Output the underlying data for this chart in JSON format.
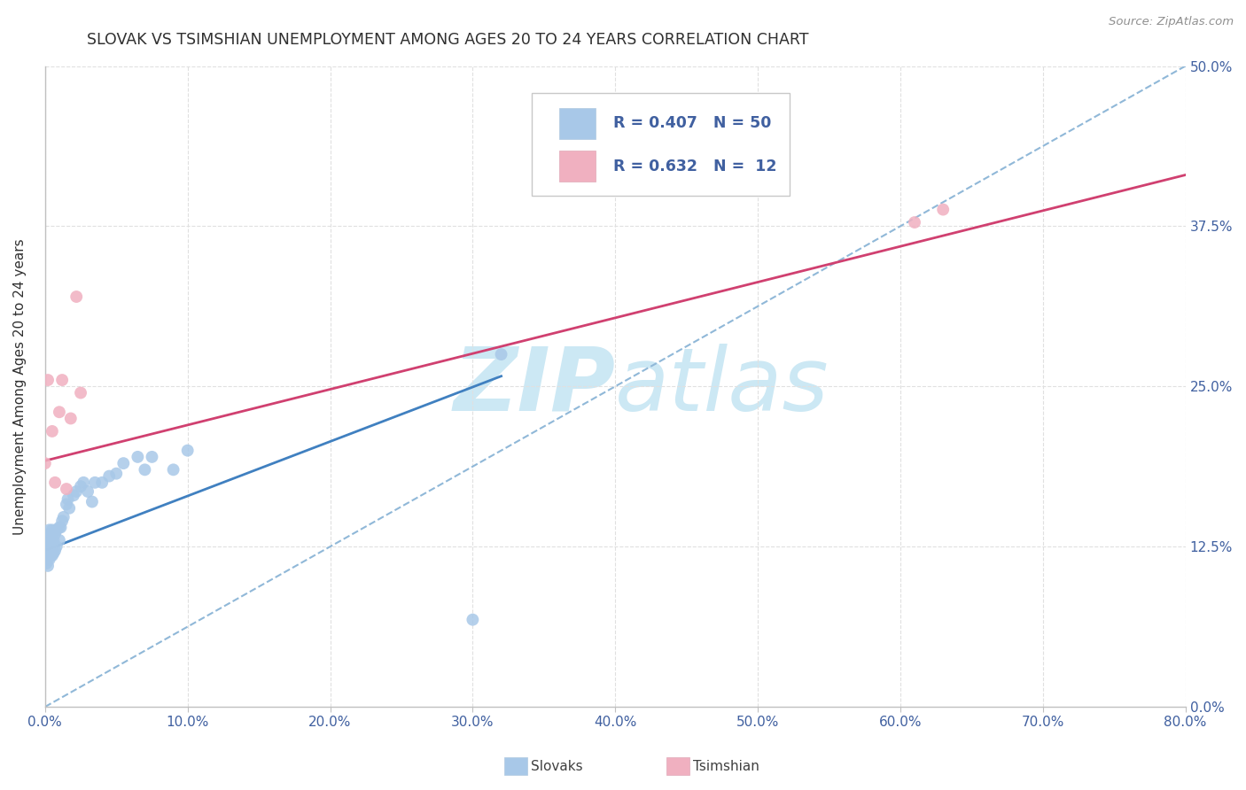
{
  "title": "SLOVAK VS TSIMSHIAN UNEMPLOYMENT AMONG AGES 20 TO 24 YEARS CORRELATION CHART",
  "source": "Source: ZipAtlas.com",
  "ylabel": "Unemployment Among Ages 20 to 24 years",
  "xlim": [
    0.0,
    0.8
  ],
  "ylim": [
    0.0,
    0.5
  ],
  "x_ticks": [
    0.0,
    0.1,
    0.2,
    0.3,
    0.4,
    0.5,
    0.6,
    0.7,
    0.8
  ],
  "y_ticks": [
    0.0,
    0.125,
    0.25,
    0.375,
    0.5
  ],
  "slovak_R": "0.407",
  "slovak_N": "50",
  "tsimshian_R": "0.632",
  "tsimshian_N": "12",
  "slovak_scatter_color": "#a8c8e8",
  "tsimshian_scatter_color": "#f0b0c0",
  "slovak_line_color": "#4080c0",
  "tsimshian_line_color": "#d04070",
  "diagonal_color": "#90b8d8",
  "axis_label_color": "#4060a0",
  "title_color": "#303030",
  "source_color": "#909090",
  "watermark_color": "#cce8f4",
  "background_color": "#ffffff",
  "grid_color": "#e0e0e0",
  "legend_border_color": "#c8c8c8",
  "slovak_points_x": [
    0.0,
    0.0,
    0.001,
    0.001,
    0.001,
    0.002,
    0.002,
    0.002,
    0.003,
    0.003,
    0.003,
    0.003,
    0.004,
    0.004,
    0.004,
    0.005,
    0.005,
    0.005,
    0.006,
    0.006,
    0.007,
    0.007,
    0.008,
    0.008,
    0.01,
    0.01,
    0.011,
    0.012,
    0.013,
    0.015,
    0.016,
    0.017,
    0.02,
    0.022,
    0.025,
    0.027,
    0.03,
    0.033,
    0.035,
    0.04,
    0.045,
    0.05,
    0.055,
    0.065,
    0.07,
    0.075,
    0.09,
    0.1,
    0.3,
    0.32
  ],
  "slovak_points_y": [
    0.115,
    0.12,
    0.112,
    0.118,
    0.125,
    0.11,
    0.12,
    0.128,
    0.115,
    0.122,
    0.13,
    0.138,
    0.118,
    0.125,
    0.135,
    0.118,
    0.128,
    0.138,
    0.12,
    0.13,
    0.122,
    0.135,
    0.125,
    0.138,
    0.13,
    0.14,
    0.14,
    0.145,
    0.148,
    0.158,
    0.162,
    0.155,
    0.165,
    0.168,
    0.172,
    0.175,
    0.168,
    0.16,
    0.175,
    0.175,
    0.18,
    0.182,
    0.19,
    0.195,
    0.185,
    0.195,
    0.185,
    0.2,
    0.068,
    0.275
  ],
  "tsimshian_points_x": [
    0.0,
    0.002,
    0.005,
    0.007,
    0.01,
    0.012,
    0.015,
    0.018,
    0.022,
    0.025,
    0.61,
    0.63
  ],
  "tsimshian_points_y": [
    0.19,
    0.255,
    0.215,
    0.175,
    0.23,
    0.255,
    0.17,
    0.225,
    0.32,
    0.245,
    0.378,
    0.388
  ],
  "slovak_line_x": [
    0.0,
    0.32
  ],
  "slovak_line_y": [
    0.122,
    0.258
  ],
  "tsimshian_line_x": [
    0.0,
    0.8
  ],
  "tsimshian_line_y": [
    0.192,
    0.415
  ],
  "diag_line_x": [
    0.0,
    0.8
  ],
  "diag_line_y": [
    0.0,
    0.5
  ]
}
